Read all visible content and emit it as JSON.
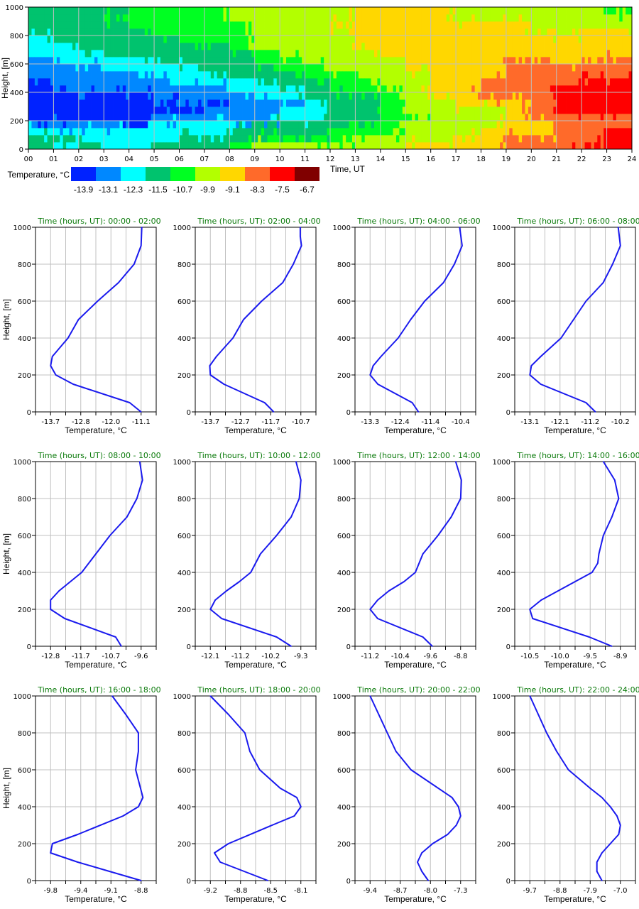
{
  "chart_data": [
    {
      "type": "heatmap",
      "title": "",
      "xlabel": "Time, UT",
      "ylabel": "Height, [m]",
      "xlim": [
        0,
        24
      ],
      "ylim": [
        0,
        1000
      ],
      "x_ticks": [
        "00",
        "01",
        "02",
        "03",
        "04",
        "05",
        "06",
        "07",
        "08",
        "09",
        "10",
        "11",
        "12",
        "13",
        "14",
        "15",
        "16",
        "17",
        "18",
        "19",
        "20",
        "21",
        "22",
        "23",
        "24"
      ],
      "y_ticks": [
        "0",
        "200",
        "400",
        "600",
        "800",
        "1000"
      ],
      "grid": true,
      "colorbar": {
        "label": "Temperature, °C",
        "colors": [
          "#0022ff",
          "#0088ff",
          "#00ffff",
          "#00c36e",
          "#00ff22",
          "#b3ff00",
          "#ffd700",
          "#ff6a2a",
          "#ff0000",
          "#800000"
        ],
        "labels": [
          "-13.9",
          "-13.1",
          "-12.3",
          "-11.5",
          "-10.7",
          "-9.9",
          "-9.1",
          "-8.3",
          "-7.5",
          "-6.7"
        ]
      },
      "height_rows_m": [
        0,
        50,
        100,
        150,
        200,
        250,
        300,
        350,
        400,
        450,
        500,
        550,
        600,
        650,
        700,
        750,
        800,
        850,
        900,
        950
      ],
      "hours": [
        0,
        1,
        2,
        3,
        4,
        5,
        6,
        7,
        8,
        9,
        10,
        11,
        12,
        13,
        14,
        15,
        16,
        17,
        18,
        19,
        20,
        21,
        22,
        23
      ],
      "class_grid": [
        [
          3,
          3,
          2,
          1,
          0,
          0,
          0,
          0,
          0,
          0,
          1,
          1,
          1,
          2,
          2,
          2,
          3,
          3,
          3,
          3
        ],
        [
          2,
          3,
          2,
          1,
          0,
          0,
          0,
          0,
          1,
          1,
          1,
          1,
          2,
          2,
          2,
          3,
          3,
          3,
          3,
          3
        ],
        [
          3,
          2,
          2,
          1,
          0,
          0,
          0,
          0,
          1,
          1,
          1,
          1,
          2,
          2,
          3,
          3,
          3,
          3,
          3,
          3
        ],
        [
          2,
          2,
          2,
          1,
          0,
          0,
          0,
          0,
          1,
          1,
          1,
          2,
          2,
          3,
          3,
          3,
          3,
          3,
          4,
          3
        ],
        [
          2,
          2,
          2,
          0,
          0,
          0,
          0,
          0,
          1,
          1,
          1,
          2,
          2,
          3,
          3,
          3,
          3,
          4,
          4,
          4
        ],
        [
          3,
          2,
          2,
          2,
          1,
          0,
          0,
          1,
          1,
          1,
          2,
          2,
          3,
          3,
          3,
          3,
          4,
          4,
          4,
          4
        ],
        [
          3,
          3,
          2,
          2,
          1,
          0,
          0,
          1,
          1,
          2,
          2,
          2,
          3,
          3,
          3,
          4,
          4,
          4,
          4,
          4
        ],
        [
          3,
          3,
          2,
          2,
          1,
          1,
          0,
          1,
          1,
          2,
          2,
          3,
          3,
          3,
          3,
          4,
          4,
          4,
          4,
          4
        ],
        [
          4,
          3,
          3,
          2,
          1,
          1,
          1,
          1,
          2,
          2,
          3,
          3,
          3,
          3,
          4,
          4,
          4,
          4,
          5,
          5
        ],
        [
          5,
          4,
          3,
          3,
          1,
          1,
          1,
          2,
          2,
          3,
          3,
          3,
          4,
          4,
          5,
          5,
          5,
          5,
          5,
          5
        ],
        [
          5,
          4,
          3,
          3,
          2,
          2,
          1,
          2,
          2,
          3,
          3,
          4,
          4,
          5,
          5,
          5,
          5,
          5,
          5,
          5
        ],
        [
          5,
          4,
          3,
          3,
          2,
          2,
          2,
          3,
          3,
          3,
          4,
          4,
          5,
          5,
          5,
          5,
          5,
          5,
          5,
          5
        ],
        [
          5,
          4,
          4,
          3,
          3,
          3,
          3,
          3,
          4,
          4,
          4,
          5,
          5,
          5,
          5,
          5,
          5,
          6,
          5,
          5
        ],
        [
          5,
          5,
          4,
          4,
          3,
          3,
          3,
          3,
          4,
          4,
          5,
          5,
          5,
          5,
          6,
          6,
          6,
          6,
          6,
          6
        ],
        [
          5,
          5,
          4,
          4,
          4,
          4,
          4,
          4,
          5,
          5,
          5,
          5,
          5,
          6,
          6,
          6,
          6,
          6,
          6,
          6
        ],
        [
          6,
          5,
          5,
          5,
          4,
          5,
          5,
          5,
          5,
          5,
          5,
          6,
          6,
          6,
          6,
          6,
          6,
          6,
          6,
          6
        ],
        [
          6,
          5,
          5,
          5,
          5,
          5,
          5,
          6,
          6,
          6,
          6,
          6,
          6,
          6,
          6,
          6,
          6,
          6,
          6,
          6
        ],
        [
          6,
          6,
          5,
          5,
          5,
          5,
          6,
          6,
          6,
          6,
          6,
          6,
          6,
          6,
          6,
          6,
          6,
          6,
          5,
          5
        ],
        [
          6,
          6,
          6,
          5,
          5,
          5,
          6,
          7,
          7,
          7,
          6,
          6,
          6,
          6,
          6,
          6,
          6,
          6,
          5,
          5
        ],
        [
          7,
          7,
          6,
          6,
          6,
          6,
          6,
          7,
          7,
          7,
          7,
          7,
          7,
          6,
          6,
          6,
          6,
          6,
          5,
          5
        ],
        [
          7,
          7,
          6,
          6,
          7,
          7,
          7,
          7,
          7,
          7,
          7,
          7,
          7,
          6,
          6,
          6,
          5,
          5,
          5,
          5
        ],
        [
          7,
          7,
          7,
          7,
          7,
          8,
          8,
          8,
          8,
          7,
          7,
          7,
          6,
          6,
          6,
          6,
          5,
          5,
          5,
          5
        ],
        [
          8,
          7,
          7,
          7,
          7,
          8,
          8,
          8,
          8,
          8,
          7,
          7,
          6,
          6,
          6,
          6,
          6,
          5,
          5,
          5
        ],
        [
          8,
          8,
          8,
          7,
          7,
          8,
          8,
          8,
          8,
          8,
          7,
          7,
          7,
          6,
          6,
          6,
          6,
          5,
          5,
          4
        ]
      ]
    },
    {
      "type": "line",
      "xlabel": "Temperature, °C",
      "ylabel": "Height, [m]",
      "ylim": [
        0,
        1000
      ],
      "y_ticks": [
        "0",
        "200",
        "400",
        "600",
        "800",
        "1000"
      ],
      "line_color": "#1a1aee",
      "title_color": "#0a7a0a",
      "panels": [
        {
          "title_prefix": "Time (hours, UT)",
          "title_start": "00:00",
          "title_end": "02:00",
          "x_ticks": [
            "-13.7",
            "-12.8",
            "-12.0",
            "-11.1"
          ],
          "x": [
            -11.1,
            -11.43,
            -13.05,
            -13.55,
            -13.7,
            -13.65,
            -13.2,
            -12.9,
            -12.35,
            -11.75,
            -11.3,
            -11.1,
            -11.08
          ],
          "y": [
            0,
            50,
            150,
            200,
            250,
            300,
            400,
            500,
            600,
            700,
            800,
            900,
            1000
          ]
        },
        {
          "title_prefix": "Time (hours, UT)",
          "title_start": "02:00",
          "title_end": "04:00",
          "x_ticks": [
            "-13.7",
            "-12.7",
            "-11.7",
            "-10.7"
          ],
          "x": [
            -11.6,
            -11.9,
            -13.25,
            -13.7,
            -13.72,
            -13.5,
            -12.95,
            -12.6,
            -12.0,
            -11.3,
            -10.95,
            -10.68,
            -10.72,
            -10.72
          ],
          "y": [
            0,
            50,
            150,
            200,
            250,
            300,
            400,
            500,
            600,
            700,
            800,
            900,
            950,
            1000
          ]
        },
        {
          "title_prefix": "Time (hours, UT)",
          "title_start": "04:00",
          "title_end": "06:00",
          "x_ticks": [
            "-13.3",
            "-12.4",
            "-11.4",
            "-10.4"
          ],
          "x": [
            -11.75,
            -11.95,
            -13.05,
            -13.3,
            -13.2,
            -12.95,
            -12.4,
            -12.0,
            -11.55,
            -10.95,
            -10.6,
            -10.35,
            -10.43
          ],
          "y": [
            0,
            50,
            150,
            200,
            250,
            300,
            400,
            500,
            600,
            700,
            800,
            900,
            1000
          ]
        },
        {
          "title_prefix": "Time (hours, UT)",
          "title_start": "06:00",
          "title_end": "08:00",
          "x_ticks": [
            "-13.1",
            "-12.1",
            "-11.2",
            "-10.2"
          ],
          "x": [
            -11.0,
            -11.3,
            -12.75,
            -13.1,
            -13.05,
            -12.75,
            -12.1,
            -11.7,
            -11.3,
            -10.75,
            -10.45,
            -10.2,
            -10.27
          ],
          "y": [
            0,
            50,
            150,
            200,
            250,
            300,
            400,
            500,
            600,
            700,
            800,
            900,
            1000
          ]
        },
        {
          "title_prefix": "Time (hours, UT)",
          "title_start": "08:00",
          "title_end": "10:00",
          "x_ticks": [
            "-12.8",
            "-11.7",
            "-10.7",
            "-9.6"
          ],
          "x": [
            -10.3,
            -10.5,
            -12.3,
            -12.8,
            -12.8,
            -12.5,
            -11.7,
            -11.2,
            -10.7,
            -10.1,
            -9.75,
            -9.55,
            -9.65
          ],
          "y": [
            0,
            50,
            150,
            200,
            250,
            300,
            400,
            500,
            600,
            700,
            800,
            900,
            1000
          ]
        },
        {
          "title_prefix": "Time (hours, UT)",
          "title_start": "10:00",
          "title_end": "12:00",
          "x_ticks": [
            "-12.1",
            "-11.2",
            "-10.2",
            "-9.3"
          ],
          "x": [
            -9.6,
            -10.05,
            -11.75,
            -12.1,
            -11.95,
            -11.6,
            -11.2,
            -10.85,
            -10.55,
            -10.05,
            -9.6,
            -9.35,
            -9.3,
            -9.45
          ],
          "y": [
            0,
            50,
            150,
            200,
            250,
            300,
            350,
            400,
            500,
            600,
            700,
            800,
            900,
            1000
          ]
        },
        {
          "title_prefix": "Time (hours, UT)",
          "title_start": "12:00",
          "title_end": "14:00",
          "x_ticks": [
            "-11.2",
            "-10.4",
            "-9.6",
            "-8.8"
          ],
          "x": [
            -9.55,
            -9.8,
            -11.0,
            -11.2,
            -11.0,
            -10.7,
            -10.3,
            -10.0,
            -9.8,
            -9.4,
            -9.05,
            -8.8,
            -8.78,
            -8.93
          ],
          "y": [
            0,
            50,
            150,
            200,
            250,
            300,
            350,
            400,
            500,
            600,
            700,
            800,
            900,
            1000
          ]
        },
        {
          "title_prefix": "Time (hours, UT)",
          "title_start": "14:00",
          "title_end": "16:00",
          "x_ticks": [
            "-10.5",
            "-10.0",
            "-9.5",
            "-8.9"
          ],
          "x": [
            -9.05,
            -9.45,
            -10.45,
            -10.5,
            -10.3,
            -9.7,
            -9.4,
            -9.3,
            -9.28,
            -9.2,
            -9.05,
            -8.93,
            -9.0,
            -9.2
          ],
          "y": [
            0,
            50,
            150,
            200,
            250,
            350,
            400,
            450,
            500,
            600,
            700,
            800,
            900,
            1000
          ]
        },
        {
          "title_prefix": "Time (hours, UT)",
          "title_start": "16:00",
          "title_end": "18:00",
          "x_ticks": [
            "-9.8",
            "-9.4",
            "-9.1",
            "-8.8"
          ],
          "x": [
            -8.8,
            -9.15,
            -9.5,
            -9.8,
            -9.78,
            -9.5,
            -9.0,
            -8.83,
            -8.78,
            -8.86,
            -8.83,
            -8.83,
            -8.97,
            -9.12
          ],
          "y": [
            0,
            50,
            100,
            150,
            200,
            250,
            350,
            400,
            450,
            600,
            700,
            800,
            900,
            1000
          ]
        },
        {
          "title_prefix": "Time (hours, UT)",
          "title_start": "18:00",
          "title_end": "20:00",
          "x_ticks": [
            "-9.2",
            "-8.8",
            "-8.5",
            "-8.1"
          ],
          "x": [
            -8.5,
            -9.08,
            -9.15,
            -8.98,
            -8.45,
            -8.18,
            -8.1,
            -8.15,
            -8.35,
            -8.6,
            -8.72,
            -8.78,
            -8.98,
            -9.2
          ],
          "y": [
            0,
            100,
            150,
            200,
            300,
            350,
            400,
            450,
            500,
            600,
            700,
            800,
            900,
            1000
          ]
        },
        {
          "title_prefix": "Time (hours, UT)",
          "title_start": "20:00",
          "title_end": "22:00",
          "x_ticks": [
            "-9.4",
            "-8.7",
            "-8.0",
            "-7.3"
          ],
          "x": [
            -8.05,
            -8.2,
            -8.3,
            -8.2,
            -7.95,
            -7.6,
            -7.4,
            -7.3,
            -7.35,
            -7.5,
            -8.45,
            -8.8,
            -9.0,
            -9.4
          ],
          "y": [
            0,
            50,
            100,
            150,
            200,
            250,
            300,
            350,
            400,
            450,
            600,
            700,
            800,
            1000
          ]
        },
        {
          "title_prefix": "Time (hours, UT)",
          "title_start": "22:00",
          "title_end": "24:00",
          "x_ticks": [
            "-9.7",
            "-8.8",
            "-7.9",
            "-7.0"
          ],
          "x": [
            -7.55,
            -7.7,
            -7.7,
            -7.55,
            -7.3,
            -7.05,
            -7.0,
            -7.1,
            -7.3,
            -7.55,
            -7.9,
            -8.55,
            -8.9,
            -9.2,
            -9.45,
            -9.7
          ],
          "y": [
            0,
            50,
            100,
            150,
            200,
            250,
            300,
            350,
            400,
            450,
            500,
            600,
            700,
            800,
            900,
            1000
          ]
        }
      ]
    }
  ]
}
